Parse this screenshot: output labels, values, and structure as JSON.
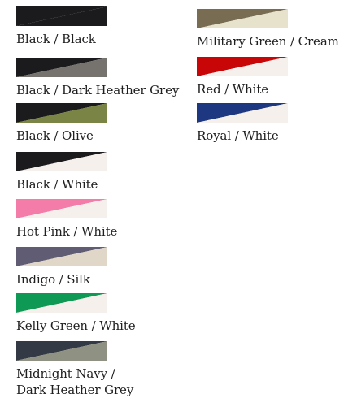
{
  "swatches": [
    {
      "label": "Black / Black",
      "primary": "#1b1b1e",
      "secondary": "#1b1b1e"
    },
    {
      "label": "Black / Dark Heather Grey",
      "primary": "#1b1b1e",
      "secondary": "#76736e"
    },
    {
      "label": "Black / Olive",
      "primary": "#1b1b1e",
      "secondary": "#7a8445"
    },
    {
      "label": "Black / White",
      "primary": "#1b1b1e",
      "secondary": "#f6f0ed"
    },
    {
      "label": "Hot Pink / White",
      "primary": "#f47ca8",
      "secondary": "#f6f0ed"
    },
    {
      "label": "Indigo / Silk",
      "primary": "#5f5c74",
      "secondary": "#e0d7c9"
    },
    {
      "label": "Kelly Green / White",
      "primary": "#0e9a54",
      "secondary": "#f6f0ed"
    },
    {
      "label": "Midnight Navy / Dark Heather Grey",
      "primary": "#343a45",
      "secondary": "#8f9282"
    },
    {
      "label": "Military Green / Cream",
      "primary": "#786c52",
      "secondary": "#e6e2cc"
    },
    {
      "label": "Red / White",
      "primary": "#c80507",
      "secondary": "#f6f0ed"
    },
    {
      "label": "Royal / White",
      "primary": "#1d3880",
      "secondary": "#f6f0ed"
    }
  ]
}
